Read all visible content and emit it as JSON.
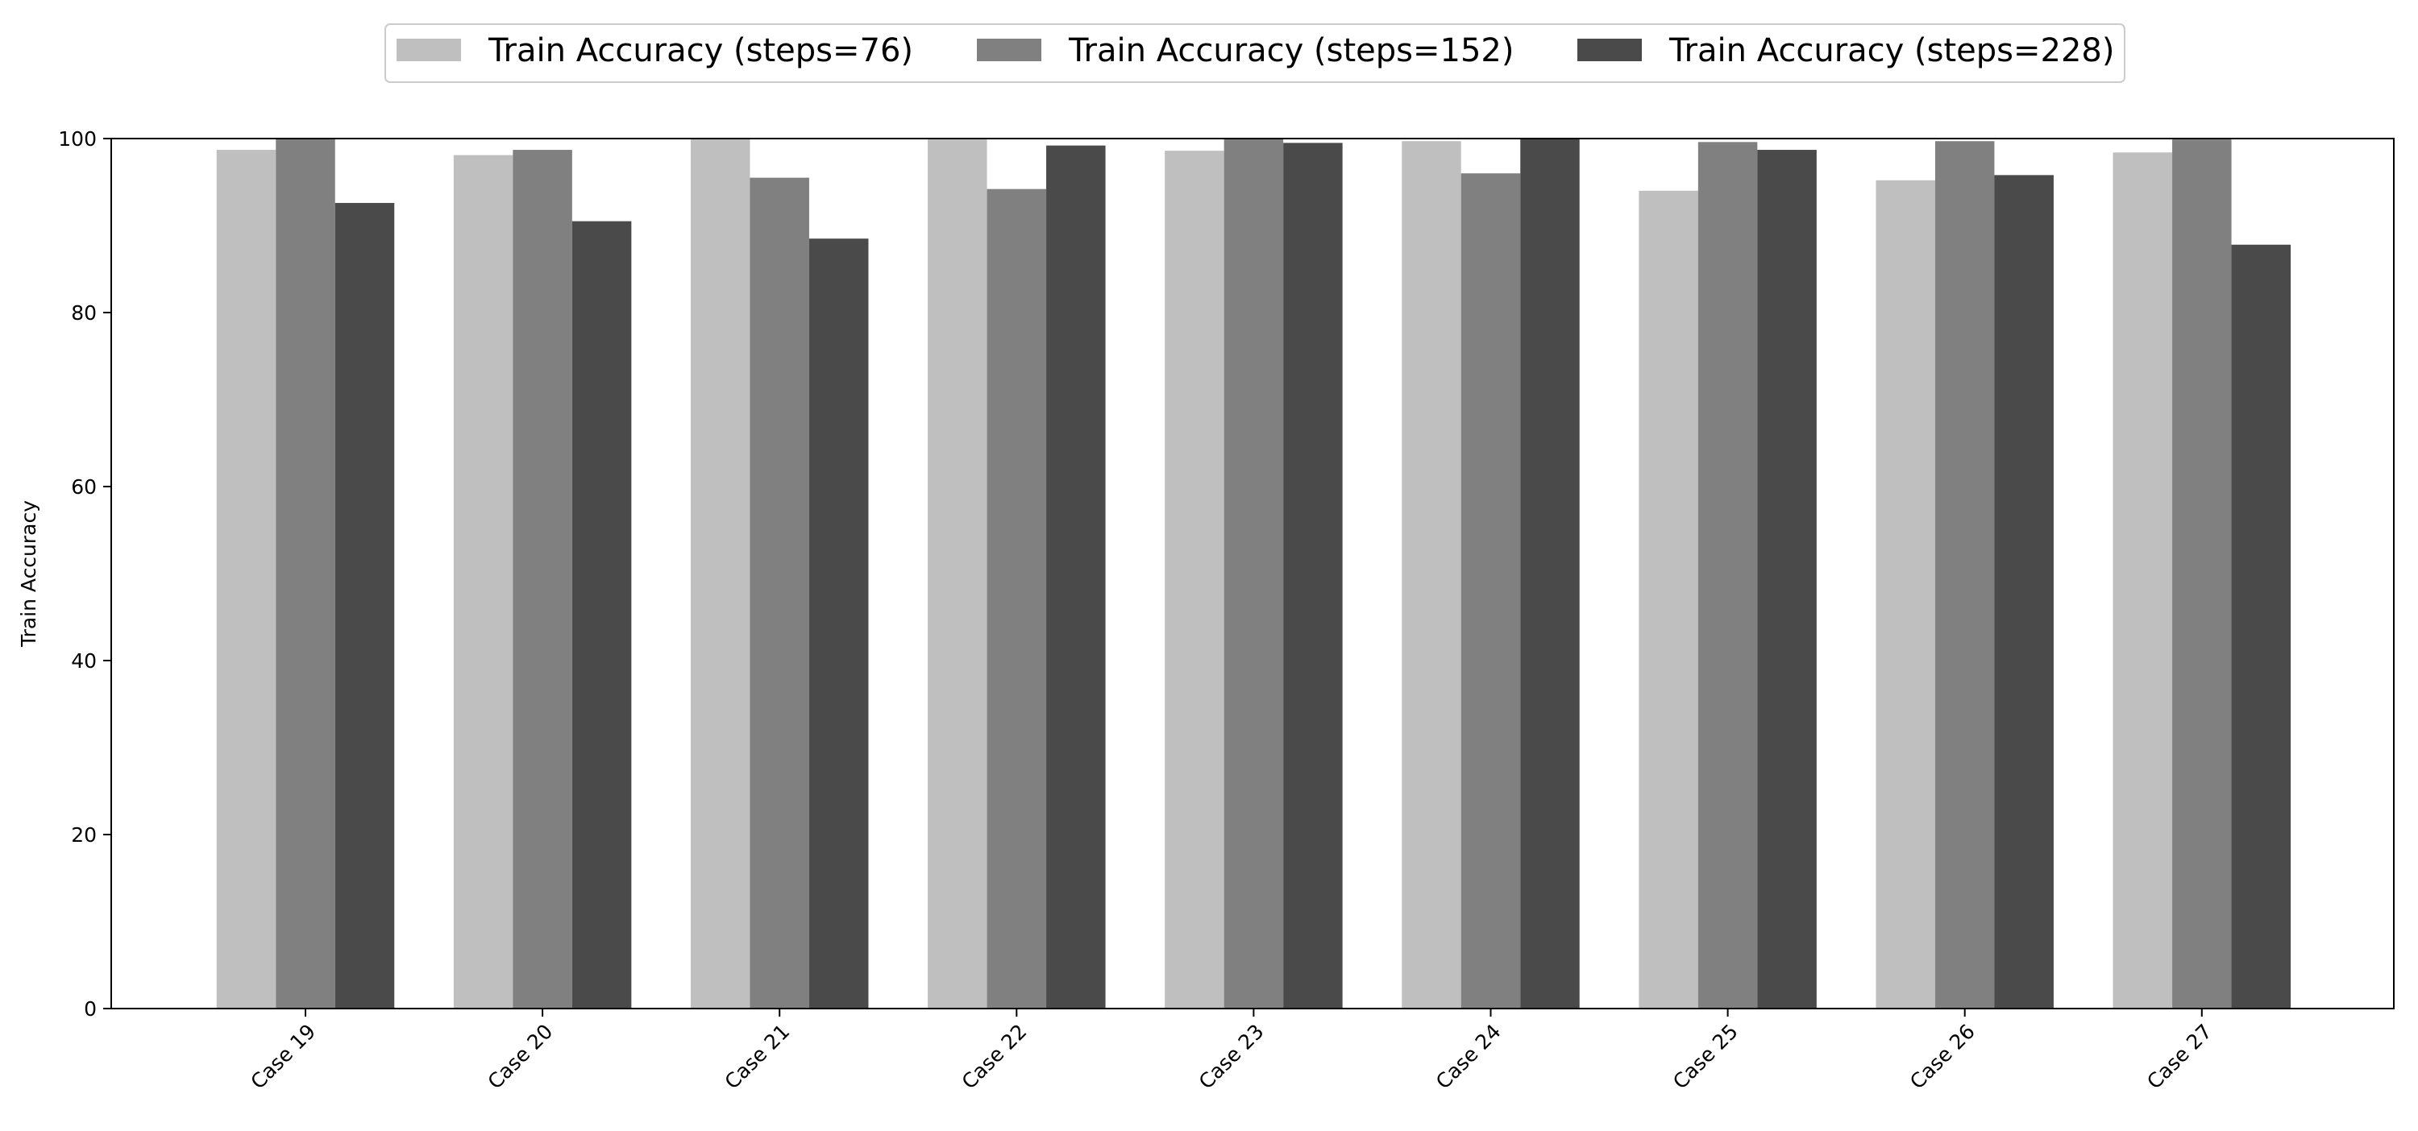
{
  "chart_data": {
    "type": "bar",
    "title": "",
    "xlabel": "",
    "ylabel": "Train Accuracy",
    "ylim": [
      0,
      100
    ],
    "yticks": [
      0,
      20,
      40,
      60,
      80,
      100
    ],
    "grid": false,
    "legend_position": "top-center",
    "categories": [
      "Case 19",
      "Case 20",
      "Case 21",
      "Case 22",
      "Case 23",
      "Case 24",
      "Case 25",
      "Case 26",
      "Case 27"
    ],
    "series": [
      {
        "name": "Train Accuracy (steps=76)",
        "color": "#bfbfbf",
        "values": [
          98.7,
          98.1,
          100,
          99.9,
          98.6,
          99.7,
          94.0,
          95.2,
          98.4
        ]
      },
      {
        "name": "Train Accuracy (steps=152)",
        "color": "#808080",
        "values": [
          100,
          98.7,
          95.5,
          94.2,
          100,
          96.0,
          99.6,
          99.7,
          99.9
        ]
      },
      {
        "name": "Train Accuracy (steps=228)",
        "color": "#4a4a4a",
        "values": [
          92.6,
          90.5,
          88.5,
          99.2,
          99.5,
          100,
          98.7,
          95.8,
          87.8
        ]
      }
    ]
  }
}
